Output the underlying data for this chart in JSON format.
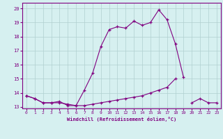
{
  "xlabel": "Windchill (Refroidissement éolien,°C)",
  "x": [
    0,
    1,
    2,
    3,
    4,
    5,
    6,
    7,
    8,
    9,
    10,
    11,
    12,
    13,
    14,
    15,
    16,
    17,
    18,
    19,
    20,
    21,
    22,
    23
  ],
  "line1": [
    13.8,
    13.6,
    13.3,
    13.3,
    13.4,
    13.1,
    13.1,
    14.2,
    15.4,
    17.3,
    18.5,
    18.7,
    18.6,
    19.1,
    18.8,
    19.0,
    19.9,
    19.2,
    17.5,
    15.1,
    null,
    null,
    null,
    null
  ],
  "line2": [
    13.8,
    13.6,
    13.3,
    13.3,
    13.3,
    13.2,
    13.1,
    13.1,
    13.2,
    13.3,
    13.4,
    13.5,
    13.6,
    13.7,
    13.8,
    14.0,
    14.2,
    14.4,
    15.0,
    null,
    null,
    null,
    null,
    null
  ],
  "line3": [
    null,
    null,
    null,
    null,
    null,
    null,
    null,
    null,
    null,
    null,
    null,
    null,
    null,
    null,
    null,
    null,
    null,
    null,
    null,
    null,
    13.3,
    13.6,
    13.3,
    13.3
  ],
  "line_color": "#800080",
  "bg_color": "#d6f0f0",
  "grid_color": "#b0d0d0",
  "ylim": [
    12.9,
    20.4
  ],
  "xlim": [
    -0.5,
    23.5
  ],
  "yticks": [
    13,
    14,
    15,
    16,
    17,
    18,
    19,
    20
  ],
  "xticks": [
    0,
    1,
    2,
    3,
    4,
    5,
    6,
    7,
    8,
    9,
    10,
    11,
    12,
    13,
    14,
    15,
    16,
    17,
    18,
    19,
    20,
    21,
    22,
    23
  ]
}
